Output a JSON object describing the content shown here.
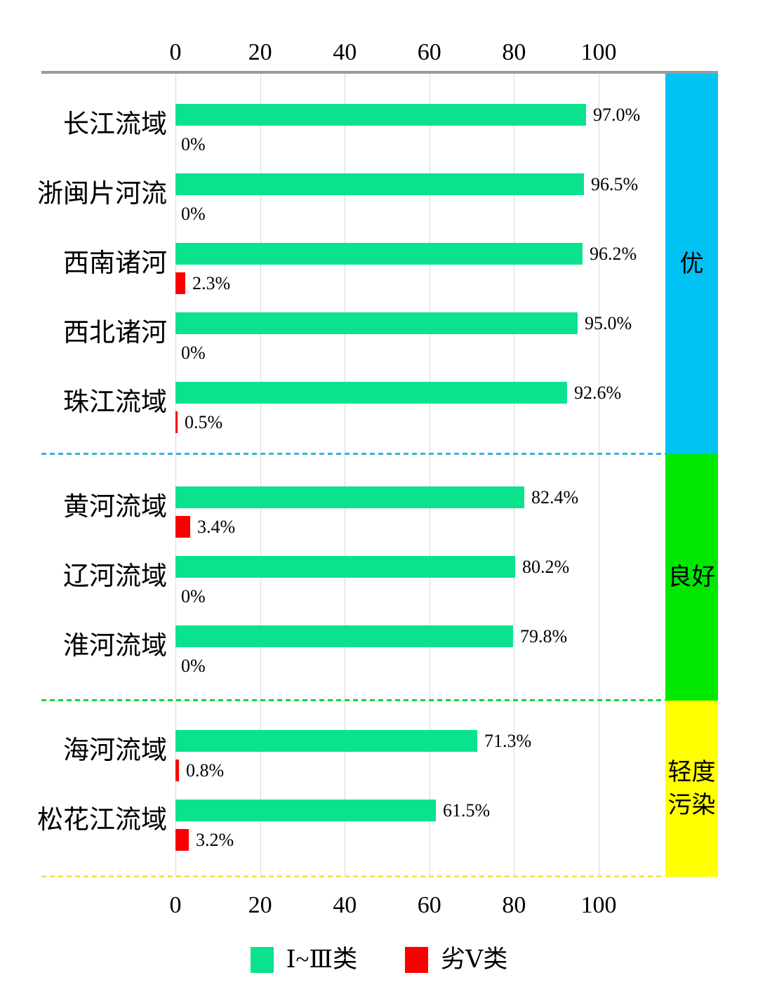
{
  "chart_data": {
    "type": "bar",
    "orientation": "horizontal",
    "title": "",
    "x_axis": {
      "min": 0,
      "max": 100,
      "ticks": [
        {
          "value": 0,
          "label": "0"
        },
        {
          "value": 20,
          "label": "20"
        },
        {
          "value": 40,
          "label": "40"
        },
        {
          "value": 60,
          "label": "60"
        },
        {
          "value": 80,
          "label": "80"
        },
        {
          "value": 100,
          "label": "100"
        }
      ],
      "grid": true,
      "tick_labels_top_and_bottom": true
    },
    "categories": [
      "长江流域",
      "浙闽片河流",
      "西南诸河",
      "西北诸河",
      "珠江流域",
      "黄河流域",
      "辽河流域",
      "淮河流域",
      "海河流域",
      "松花江流域"
    ],
    "series": [
      {
        "name": "Ⅰ~Ⅲ类",
        "color": "#0be28e",
        "values": [
          97.0,
          96.5,
          96.2,
          95.0,
          92.6,
          82.4,
          80.2,
          79.8,
          71.3,
          61.5
        ],
        "labels": [
          "97.0%",
          "96.5%",
          "96.2%",
          "95.0%",
          "92.6%",
          "82.4%",
          "80.2%",
          "79.8%",
          "71.3%",
          "61.5%"
        ]
      },
      {
        "name": "劣Ⅴ类",
        "color": "#fa0000",
        "values": [
          0,
          0,
          2.3,
          0,
          0.5,
          3.4,
          0,
          0,
          0.8,
          3.2
        ],
        "labels": [
          "0%",
          "0%",
          "2.3%",
          "0%",
          "0.5%",
          "3.4%",
          "0%",
          "0%",
          "0.8%",
          "3.2%"
        ]
      }
    ],
    "groups": [
      {
        "name": "excellent",
        "label": "优",
        "label_lines": [
          "优"
        ],
        "rows": 5,
        "band_color": "#00c2f3",
        "divider_color": "#35b3e0"
      },
      {
        "name": "good",
        "label": "良好",
        "label_lines": [
          "良好"
        ],
        "rows": 3,
        "band_color": "#00e800",
        "divider_color": "#00d93c"
      },
      {
        "name": "light-pollution",
        "label": "轻度污染",
        "label_lines": [
          "轻度",
          "污染"
        ],
        "rows": 2,
        "band_color": "#ffff00",
        "divider_color": "#f3e54d"
      }
    ],
    "legend": [
      {
        "label": "Ⅰ~Ⅲ类",
        "color": "#0be28e"
      },
      {
        "label": "劣Ⅴ类",
        "color": "#fa0000"
      }
    ]
  },
  "colors": {
    "axis_line": "#9b9b9b",
    "gridline": "#d9d9d9",
    "text": "#000000",
    "background": "#ffffff"
  }
}
